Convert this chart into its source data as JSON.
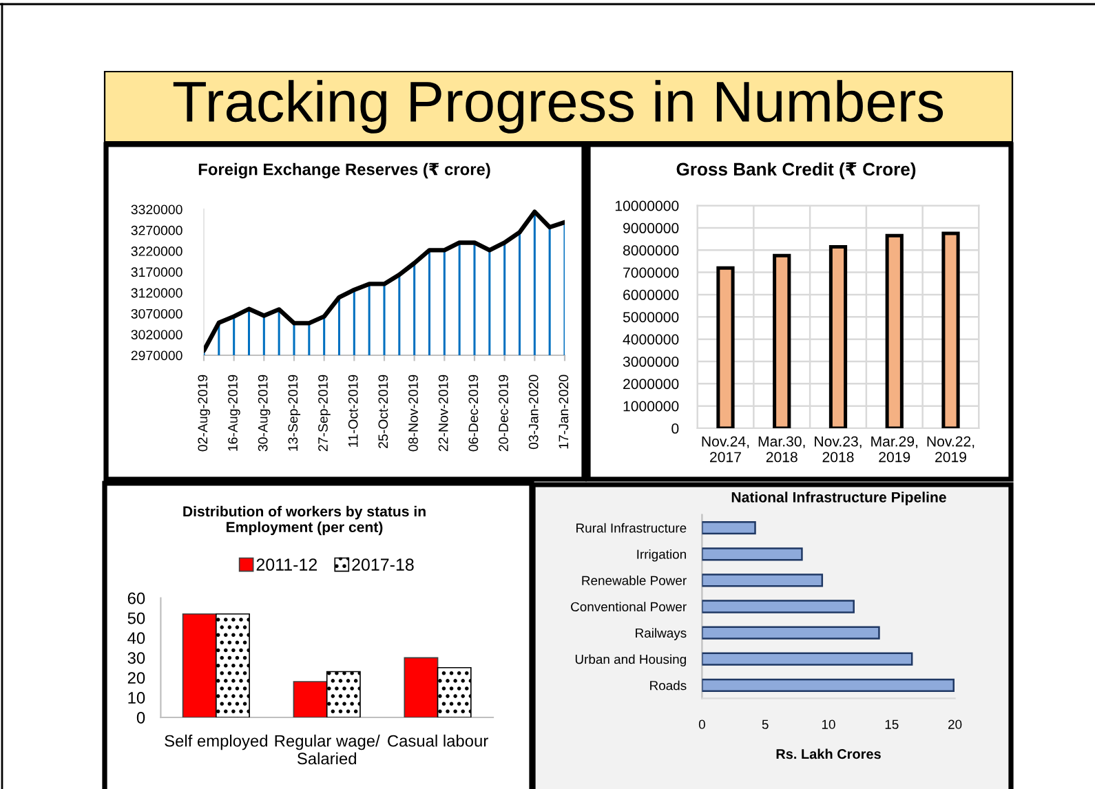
{
  "chart_data": [
    {
      "type": "other",
      "title": "Tracking Progress in Numbers"
    },
    {
      "type": "line",
      "title": "Foreign Exchange Reserves (₹ crore)",
      "categories": [
        "02-Aug-2019",
        null,
        "16-Aug-2019",
        null,
        "30-Aug-2019",
        null,
        "13-Sep-2019",
        null,
        "27-Sep-2019",
        null,
        "11-Oct-2019",
        null,
        "25-Oct-2019",
        null,
        "08-Nov-2019",
        null,
        "22-Nov-2019",
        null,
        "06-Dec-2019",
        null,
        "20-Dec-2019",
        null,
        "03-Jan-2020",
        null,
        "17-Jan-2020"
      ],
      "series": [
        {
          "type": "bar",
          "color": "#0070c0",
          "values": [
            2981000,
            3048000,
            3063000,
            3081000,
            3065000,
            3080000,
            3047000,
            3047000,
            3063000,
            3109000,
            3127000,
            3141000,
            3141000,
            3163000,
            3191000,
            3222000,
            3222000,
            3240000,
            3240000,
            3222000,
            3240000,
            3265000,
            3314000,
            3277000,
            3289000
          ]
        },
        {
          "type": "line",
          "color": "#000000",
          "values": [
            2981000,
            3048000,
            3063000,
            3081000,
            3065000,
            3080000,
            3047000,
            3047000,
            3063000,
            3109000,
            3127000,
            3141000,
            3141000,
            3163000,
            3191000,
            3222000,
            3222000,
            3240000,
            3240000,
            3222000,
            3240000,
            3265000,
            3314000,
            3277000,
            3289000
          ]
        }
      ],
      "ylim": [
        2970000,
        3320000
      ],
      "yticks": [
        2970000,
        3020000,
        3070000,
        3120000,
        3170000,
        3220000,
        3270000,
        3320000
      ]
    },
    {
      "type": "bar",
      "title": "Gross Bank Credit (₹ Crore)",
      "categories": [
        "Nov.24, 2017",
        "Mar.30, 2018",
        "Nov.23, 2018",
        "Mar.29, 2019",
        "Nov.22, 2019"
      ],
      "values": [
        7200000,
        7750000,
        8150000,
        8650000,
        8750000
      ],
      "color": "#f4b183",
      "ylim": [
        0,
        10000000
      ],
      "yticks": [
        0,
        1000000,
        2000000,
        3000000,
        4000000,
        5000000,
        6000000,
        7000000,
        8000000,
        9000000,
        10000000
      ],
      "grid": true
    },
    {
      "type": "bar",
      "title": "Distribution of workers by status in\nEmployment (per cent)",
      "categories": [
        "Self employed",
        "Regular wage/\nSalaried",
        "Casual labour"
      ],
      "series": [
        {
          "name": "2011-12",
          "color": "#ff0000",
          "values": [
            52,
            18,
            30
          ]
        },
        {
          "name": "2017-18",
          "color": "#ffffff",
          "values": [
            52,
            23,
            25
          ]
        }
      ],
      "ylim": [
        0,
        60
      ],
      "yticks": [
        0,
        10,
        20,
        30,
        40,
        50,
        60
      ],
      "legend": "top"
    },
    {
      "type": "bar",
      "orientation": "horizontal",
      "title": "National Infrastructure Pipeline",
      "categories": [
        "Rural Infrastructure",
        "Irrigation",
        "Renewable Power",
        "Conventional Power",
        "Railways",
        "Urban and Housing",
        "Roads"
      ],
      "values": [
        4.2,
        7.9,
        9.5,
        12,
        14,
        16.6,
        19.9
      ],
      "color": "#8eaadb",
      "xlim": [
        0,
        20
      ],
      "xticks": [
        0,
        5,
        10,
        15,
        20
      ],
      "xlabel": "Rs. Lakh Crores"
    }
  ]
}
